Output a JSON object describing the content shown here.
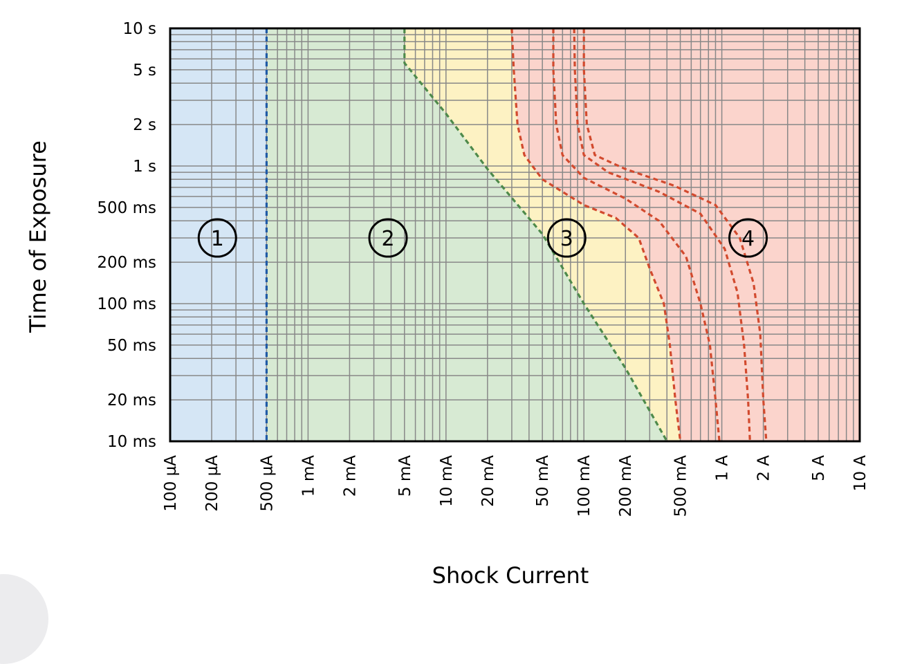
{
  "chart_data": {
    "type": "area",
    "xlabel": "Shock Current",
    "ylabel": "Time of Exposure",
    "x_scale": "log",
    "y_scale": "log",
    "xlim_A": [
      0.0001,
      10
    ],
    "ylim_s": [
      0.01,
      10
    ],
    "grid": true,
    "x_ticks": [
      {
        "value": 0.0001,
        "label": "100 µA"
      },
      {
        "value": 0.0002,
        "label": "200 µA"
      },
      {
        "value": 0.0005,
        "label": "500 µA"
      },
      {
        "value": 0.001,
        "label": "1 mA"
      },
      {
        "value": 0.002,
        "label": "2 mA"
      },
      {
        "value": 0.005,
        "label": "5 mA"
      },
      {
        "value": 0.01,
        "label": "10 mA"
      },
      {
        "value": 0.02,
        "label": "20 mA"
      },
      {
        "value": 0.05,
        "label": "50 mA"
      },
      {
        "value": 0.1,
        "label": "100 mA"
      },
      {
        "value": 0.2,
        "label": "200 mA"
      },
      {
        "value": 0.5,
        "label": "500 mA"
      },
      {
        "value": 1,
        "label": "1 A"
      },
      {
        "value": 2,
        "label": "2 A"
      },
      {
        "value": 5,
        "label": "5 A"
      },
      {
        "value": 10,
        "label": "10 A"
      }
    ],
    "y_ticks": [
      {
        "value": 10,
        "label": "10 s"
      },
      {
        "value": 5,
        "label": "5 s"
      },
      {
        "value": 2,
        "label": "2 s"
      },
      {
        "value": 1,
        "label": "1 s"
      },
      {
        "value": 0.5,
        "label": "500 ms"
      },
      {
        "value": 0.2,
        "label": "200 ms"
      },
      {
        "value": 0.1,
        "label": "100 ms"
      },
      {
        "value": 0.05,
        "label": "50 ms"
      },
      {
        "value": 0.02,
        "label": "20 ms"
      },
      {
        "value": 0.01,
        "label": "10 ms"
      }
    ],
    "zones": [
      {
        "label": "1",
        "color": "#d5e6f5",
        "label_at": {
          "x": 0.00022,
          "y": 0.3
        }
      },
      {
        "label": "2",
        "color": "#d7ead3",
        "label_at": {
          "x": 0.0038,
          "y": 0.3
        }
      },
      {
        "label": "3",
        "color": "#fdf2c3",
        "label_at": {
          "x": 0.075,
          "y": 0.3
        }
      },
      {
        "label": "4",
        "color": "#fbd4cc",
        "label_at": {
          "x": 1.55,
          "y": 0.3
        }
      }
    ],
    "boundaries": [
      {
        "between": "1-2",
        "color": "#1f5aa6",
        "points": [
          [
            0.0005,
            10
          ],
          [
            0.0005,
            0.01
          ]
        ]
      },
      {
        "between": "2-3",
        "color": "#4e8a4b",
        "points": [
          [
            0.005,
            10
          ],
          [
            0.005,
            5.6
          ],
          [
            0.01,
            2.4
          ],
          [
            0.02,
            0.95
          ],
          [
            0.05,
            0.32
          ],
          [
            0.1,
            0.1
          ],
          [
            0.2,
            0.034
          ],
          [
            0.4,
            0.01
          ]
        ]
      },
      {
        "between": "3-4",
        "color": "#d24a2e",
        "points": [
          [
            0.03,
            10
          ],
          [
            0.031,
            5
          ],
          [
            0.033,
            2
          ],
          [
            0.037,
            1.2
          ],
          [
            0.05,
            0.8
          ],
          [
            0.1,
            0.52
          ],
          [
            0.17,
            0.42
          ],
          [
            0.25,
            0.3
          ],
          [
            0.3,
            0.18
          ],
          [
            0.38,
            0.1
          ],
          [
            0.42,
            0.05
          ],
          [
            0.46,
            0.02
          ],
          [
            0.5,
            0.01
          ]
        ]
      },
      {
        "between": "4a",
        "color": "#d24a2e",
        "points": [
          [
            0.06,
            10
          ],
          [
            0.06,
            5
          ],
          [
            0.063,
            2
          ],
          [
            0.07,
            1.2
          ],
          [
            0.1,
            0.82
          ],
          [
            0.2,
            0.58
          ],
          [
            0.35,
            0.4
          ],
          [
            0.55,
            0.22
          ],
          [
            0.7,
            0.1
          ],
          [
            0.82,
            0.05
          ],
          [
            0.9,
            0.02
          ],
          [
            0.96,
            0.01
          ]
        ]
      },
      {
        "between": "4b",
        "color": "#d24a2e",
        "points": [
          [
            0.085,
            10
          ],
          [
            0.086,
            5
          ],
          [
            0.09,
            2
          ],
          [
            0.1,
            1.2
          ],
          [
            0.15,
            0.9
          ],
          [
            0.35,
            0.65
          ],
          [
            0.7,
            0.45
          ],
          [
            1.05,
            0.25
          ],
          [
            1.3,
            0.12
          ],
          [
            1.45,
            0.05
          ],
          [
            1.55,
            0.02
          ],
          [
            1.6,
            0.01
          ]
        ]
      },
      {
        "between": "4c",
        "color": "#d24a2e",
        "points": [
          [
            0.1,
            10
          ],
          [
            0.1,
            5
          ],
          [
            0.105,
            2
          ],
          [
            0.12,
            1.2
          ],
          [
            0.2,
            0.95
          ],
          [
            0.45,
            0.72
          ],
          [
            0.9,
            0.52
          ],
          [
            1.35,
            0.3
          ],
          [
            1.7,
            0.14
          ],
          [
            1.9,
            0.06
          ],
          [
            2,
            0.02
          ],
          [
            2.1,
            0.01
          ]
        ]
      }
    ]
  }
}
